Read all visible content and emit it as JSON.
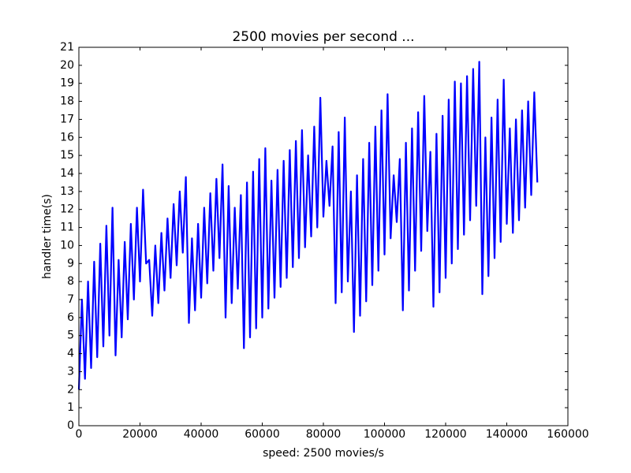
{
  "chart_data": {
    "type": "line",
    "title": "2500 movies per second ...",
    "x_label": "speed: 2500 movies/s",
    "y_label": "handler time(s)",
    "color": "#0000ff",
    "xlim": [
      0,
      160000
    ],
    "xticks": [
      0,
      20000,
      40000,
      60000,
      80000,
      100000,
      120000,
      140000,
      160000
    ],
    "ylim": [
      0,
      21
    ],
    "yticks": [
      0,
      1,
      2,
      3,
      4,
      5,
      6,
      7,
      8,
      9,
      10,
      11,
      12,
      13,
      14,
      15,
      16,
      17,
      18,
      19,
      20,
      21
    ],
    "x": [
      0,
      1000,
      2000,
      3000,
      4000,
      5000,
      6000,
      7000,
      8000,
      9000,
      10000,
      11000,
      12000,
      13000,
      14000,
      15000,
      16000,
      17000,
      18000,
      19000,
      20000,
      21000,
      22000,
      23000,
      24000,
      25000,
      26000,
      27000,
      28000,
      29000,
      30000,
      31000,
      32000,
      33000,
      34000,
      35000,
      36000,
      37000,
      38000,
      39000,
      40000,
      41000,
      42000,
      43000,
      44000,
      45000,
      46000,
      47000,
      48000,
      49000,
      50000,
      51000,
      52000,
      53000,
      54000,
      55000,
      56000,
      57000,
      58000,
      59000,
      60000,
      61000,
      62000,
      63000,
      64000,
      65000,
      66000,
      67000,
      68000,
      69000,
      70000,
      71000,
      72000,
      73000,
      74000,
      75000,
      76000,
      77000,
      78000,
      79000,
      80000,
      81000,
      82000,
      83000,
      84000,
      85000,
      86000,
      87000,
      88000,
      89000,
      90000,
      91000,
      92000,
      93000,
      94000,
      95000,
      96000,
      97000,
      98000,
      99000,
      100000,
      101000,
      102000,
      103000,
      104000,
      105000,
      106000,
      107000,
      108000,
      109000,
      110000,
      111000,
      112000,
      113000,
      114000,
      115000,
      116000,
      117000,
      118000,
      119000,
      120000,
      121000,
      122000,
      123000,
      124000,
      125000,
      126000,
      127000,
      128000,
      129000,
      130000,
      131000,
      132000,
      133000,
      134000,
      135000,
      136000,
      137000,
      138000,
      139000,
      140000,
      141000,
      142000,
      143000,
      144000,
      145000,
      146000,
      147000,
      148000,
      149000,
      150000
    ],
    "values": [
      2.0,
      7.0,
      2.6,
      8.0,
      3.2,
      9.1,
      3.8,
      10.1,
      4.4,
      11.1,
      5.0,
      12.1,
      3.9,
      9.2,
      4.9,
      10.2,
      5.9,
      11.2,
      7.0,
      12.1,
      8.0,
      13.1,
      9.0,
      9.2,
      6.1,
      10.0,
      6.8,
      10.7,
      7.5,
      11.5,
      8.2,
      12.3,
      8.9,
      13.0,
      9.6,
      13.8,
      5.7,
      10.4,
      6.4,
      11.2,
      7.1,
      12.1,
      7.9,
      12.9,
      8.6,
      13.7,
      9.3,
      14.5,
      6.0,
      13.3,
      6.8,
      12.1,
      7.6,
      12.8,
      4.3,
      13.5,
      4.9,
      14.1,
      5.4,
      14.8,
      6.0,
      15.4,
      6.5,
      13.6,
      7.1,
      14.2,
      7.7,
      14.7,
      8.2,
      15.3,
      8.8,
      15.8,
      9.3,
      16.4,
      9.9,
      15.0,
      10.5,
      16.6,
      11.0,
      18.2,
      11.6,
      14.7,
      12.2,
      15.5,
      6.8,
      16.3,
      7.4,
      17.1,
      8.0,
      13.0,
      5.2,
      13.9,
      6.1,
      14.8,
      6.9,
      15.7,
      7.8,
      16.6,
      8.6,
      17.5,
      9.5,
      18.4,
      10.4,
      13.9,
      11.3,
      14.8,
      6.4,
      15.7,
      7.5,
      16.5,
      8.6,
      17.4,
      9.7,
      18.3,
      10.8,
      15.2,
      6.6,
      16.2,
      7.4,
      17.2,
      8.2,
      18.1,
      9.0,
      19.1,
      9.8,
      19.0,
      10.6,
      19.4,
      11.4,
      19.8,
      12.2,
      20.2,
      7.3,
      16.0,
      8.3,
      17.1,
      9.3,
      18.1,
      10.2,
      19.2,
      11.2,
      16.5,
      10.7,
      17.0,
      11.4,
      17.5,
      12.1,
      18.0,
      12.8,
      18.5,
      13.5
    ]
  }
}
